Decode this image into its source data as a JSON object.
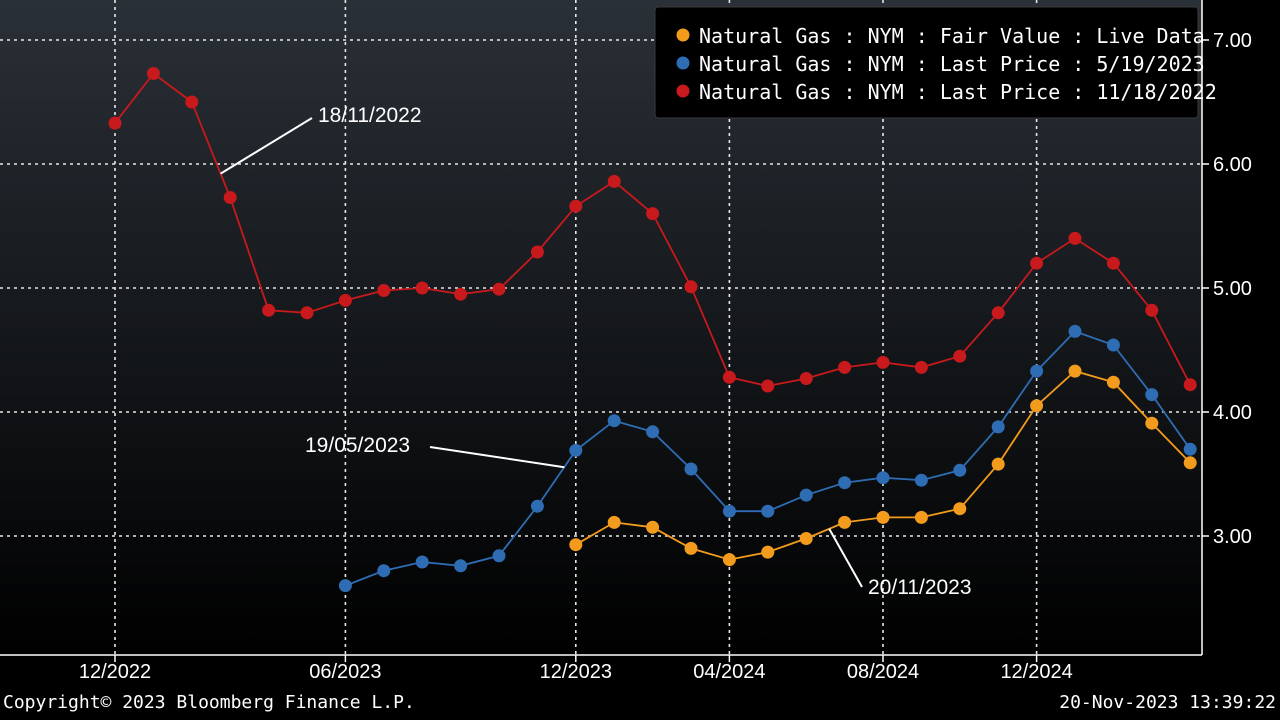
{
  "chart_data": {
    "type": "line",
    "x_ticks": [
      "12/2022",
      "06/2023",
      "12/2023",
      "04/2024",
      "08/2024",
      "12/2024"
    ],
    "x_tick_months": [
      0,
      6,
      12,
      16,
      20,
      24
    ],
    "y_ticks": [
      "3.00",
      "4.00",
      "5.00",
      "6.00",
      "7.00"
    ],
    "ylim": [
      2.1,
      7.3
    ],
    "grid": true,
    "legend_position": "top-right",
    "series": [
      {
        "name": "Natural Gas : NYM : Fair Value : Live Data",
        "color": "#f29b1d",
        "start_month": 12,
        "values": [
          2.93,
          3.11,
          3.07,
          2.9,
          2.81,
          2.87,
          2.98,
          3.11,
          3.15,
          3.15,
          3.22,
          3.58,
          4.05,
          4.33,
          4.24,
          3.91,
          3.59
        ]
      },
      {
        "name": "Natural Gas : NYM : Last Price : 5/19/2023",
        "color": "#2e6db3",
        "start_month": 6,
        "values": [
          2.6,
          2.72,
          2.79,
          2.76,
          2.84,
          3.24,
          3.69,
          3.93,
          3.84,
          3.54,
          3.2,
          3.2,
          3.33,
          3.43,
          3.47,
          3.45,
          3.53,
          3.88,
          4.33,
          4.65,
          4.54,
          4.14,
          3.7
        ]
      },
      {
        "name": "Natural Gas : NYM : Last Price : 11/18/2022",
        "color": "#c8191c",
        "start_month": 0,
        "values": [
          6.33,
          6.73,
          6.5,
          5.73,
          4.82,
          4.8,
          4.9,
          4.98,
          5.0,
          4.95,
          4.99,
          5.29,
          5.66,
          5.86,
          5.6,
          5.01,
          4.28,
          4.21,
          4.27,
          4.36,
          4.4,
          4.36,
          4.45,
          4.8,
          5.2,
          5.4,
          5.2,
          4.82,
          4.22
        ]
      }
    ],
    "annotations": [
      {
        "text": "18/11/2022",
        "series": 2
      },
      {
        "text": "19/05/2023",
        "series": 1
      },
      {
        "text": "20/11/2023",
        "series": 0
      }
    ]
  },
  "footer": {
    "copyright": "Copyright© 2023 Bloomberg Finance L.P.",
    "timestamp": "20-Nov-2023 13:39:22"
  }
}
